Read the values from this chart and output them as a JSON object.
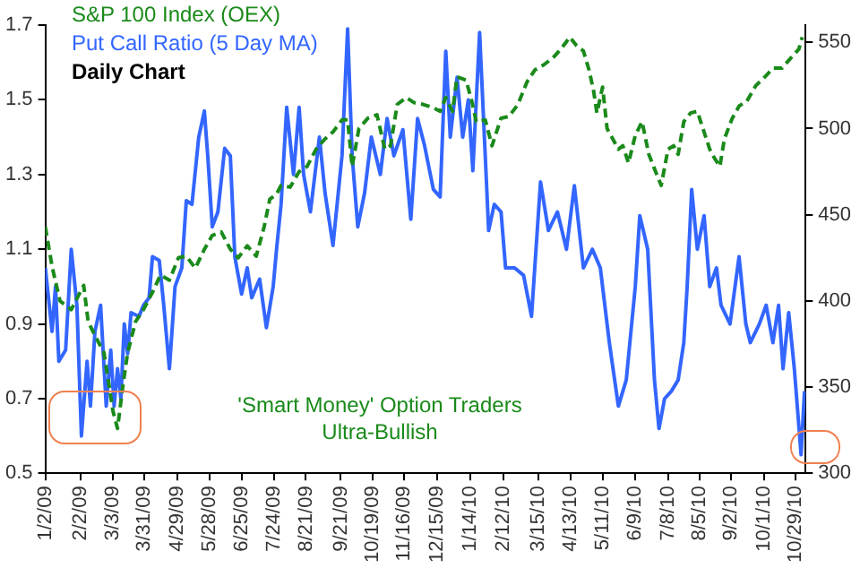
{
  "chart_data": {
    "type": "line",
    "subtitle": "Daily Chart",
    "annotations": [
      "'Smart Money' Option Traders\nUltra-Bullish"
    ],
    "legend": "top left",
    "grid": false,
    "marker": "none",
    "xlim": [
      "2009-01-02",
      "2010-11-07"
    ],
    "xticks": [
      {
        "value": "2009-01-02",
        "label": "1/2/09"
      },
      {
        "value": "2009-02-02",
        "label": "2/2/09"
      },
      {
        "value": "2009-03-03",
        "label": "3/3/09"
      },
      {
        "value": "2009-03-31",
        "label": "3/31/09"
      },
      {
        "value": "2009-04-29",
        "label": "4/29/09"
      },
      {
        "value": "2009-05-28",
        "label": "5/28/09"
      },
      {
        "value": "2009-06-25",
        "label": "6/25/09"
      },
      {
        "value": "2009-07-24",
        "label": "7/24/09"
      },
      {
        "value": "2009-08-21",
        "label": "8/21/09"
      },
      {
        "value": "2009-09-21",
        "label": "9/21/09"
      },
      {
        "value": "2009-10-19",
        "label": "10/19/09"
      },
      {
        "value": "2009-11-16",
        "label": "11/16/09"
      },
      {
        "value": "2009-12-15",
        "label": "12/15/09"
      },
      {
        "value": "2010-01-14",
        "label": "1/14/10"
      },
      {
        "value": "2010-02-12",
        "label": "2/12/10"
      },
      {
        "value": "2010-03-15",
        "label": "3/15/10"
      },
      {
        "value": "2010-04-13",
        "label": "4/13/10"
      },
      {
        "value": "2010-05-11",
        "label": "5/11/10"
      },
      {
        "value": "2010-06-09",
        "label": "6/9/10"
      },
      {
        "value": "2010-07-08",
        "label": "7/8/10"
      },
      {
        "value": "2010-08-05",
        "label": "8/5/10"
      },
      {
        "value": "2010-09-02",
        "label": "9/2/10"
      },
      {
        "value": "2010-10-01",
        "label": "10/1/10"
      },
      {
        "value": "2010-10-29",
        "label": "10/29/10"
      }
    ],
    "ylim": [
      0.5,
      1.7
    ],
    "yticks": [
      0.5,
      0.7,
      0.9,
      1.1,
      1.3,
      1.5,
      1.7
    ],
    "y2lim": [
      300,
      560
    ],
    "y2ticks": [
      300,
      350,
      400,
      450,
      500,
      550
    ],
    "series": [
      {
        "name": "S&P 100 Index (OEX)",
        "color": "#1a8a1a",
        "axis": "y2",
        "line_style": "dashed",
        "x": [
          "2009-01-02",
          "2009-01-08",
          "2009-01-15",
          "2009-01-25",
          "2009-02-05",
          "2009-02-09",
          "2009-02-15",
          "2009-02-23",
          "2009-02-28",
          "2009-03-03",
          "2009-03-07",
          "2009-03-12",
          "2009-03-16",
          "2009-03-23",
          "2009-03-30",
          "2009-04-07",
          "2009-04-14",
          "2009-04-22",
          "2009-04-30",
          "2009-05-07",
          "2009-05-15",
          "2009-05-23",
          "2009-05-30",
          "2009-06-07",
          "2009-06-15",
          "2009-06-22",
          "2009-06-30",
          "2009-07-08",
          "2009-07-15",
          "2009-07-20",
          "2009-07-26",
          "2009-07-30",
          "2009-08-07",
          "2009-08-15",
          "2009-08-22",
          "2009-08-30",
          "2009-09-07",
          "2009-09-14",
          "2009-09-22",
          "2009-09-27",
          "2009-10-01",
          "2009-10-07",
          "2009-10-15",
          "2009-10-23",
          "2009-10-30",
          "2009-11-04",
          "2009-11-10",
          "2009-11-18",
          "2009-11-25",
          "2009-12-03",
          "2009-12-12",
          "2009-12-18",
          "2009-12-23",
          "2009-12-29",
          "2010-01-02",
          "2010-01-10",
          "2010-01-15",
          "2010-01-19",
          "2010-01-27",
          "2010-02-02",
          "2010-02-10",
          "2010-02-17",
          "2010-02-25",
          "2010-03-05",
          "2010-03-12",
          "2010-03-20",
          "2010-03-28",
          "2010-04-04",
          "2010-04-12",
          "2010-04-18",
          "2010-04-24",
          "2010-04-29",
          "2010-05-03",
          "2010-05-06",
          "2010-05-11",
          "2010-05-15",
          "2010-05-20",
          "2010-05-25",
          "2010-05-29",
          "2010-06-03",
          "2010-06-09",
          "2010-06-15",
          "2010-06-21",
          "2010-06-27",
          "2010-07-02",
          "2010-07-08",
          "2010-07-13",
          "2010-07-17",
          "2010-07-22",
          "2010-07-28",
          "2010-08-03",
          "2010-08-09",
          "2010-08-14",
          "2010-08-18",
          "2010-08-23",
          "2010-08-27",
          "2010-09-03",
          "2010-09-09",
          "2010-09-16",
          "2010-09-24",
          "2010-10-02",
          "2010-10-09",
          "2010-10-17",
          "2010-10-25",
          "2010-11-01",
          "2010-11-04"
        ],
        "values": [
          443,
          420,
          400,
          395,
          409,
          388,
          380,
          370,
          349,
          336,
          326,
          352,
          370,
          388,
          395,
          405,
          415,
          412,
          425,
          426,
          419,
          430,
          438,
          440,
          430,
          425,
          432,
          426,
          443,
          459,
          462,
          467,
          466,
          475,
          478,
          488,
          494,
          498,
          505,
          505,
          478,
          500,
          506,
          508,
          488,
          490,
          514,
          518,
          515,
          514,
          512,
          510,
          518,
          510,
          530,
          528,
          516,
          504,
          505,
          490,
          506,
          507,
          514,
          527,
          534,
          537,
          541,
          546,
          553,
          548,
          545,
          534,
          522,
          509,
          524,
          500,
          494,
          488,
          490,
          480,
          496,
          504,
          485,
          475,
          467,
          488,
          490,
          485,
          504,
          509,
          510,
          498,
          488,
          483,
          478,
          494,
          506,
          513,
          516,
          525,
          530,
          535,
          535,
          541,
          546,
          553
        ]
      },
      {
        "name": "Put Call Ratio (5 Day MA)",
        "color": "#3366ff",
        "line_style": "solid",
        "x": [
          "2009-01-02",
          "2009-01-08",
          "2009-01-11",
          "2009-01-14",
          "2009-01-20",
          "2009-01-25",
          "2009-01-30",
          "2009-02-03",
          "2009-02-08",
          "2009-02-11",
          "2009-02-15",
          "2009-02-20",
          "2009-02-25",
          "2009-03-01",
          "2009-03-04",
          "2009-03-07",
          "2009-03-10",
          "2009-03-13",
          "2009-03-16",
          "2009-03-19",
          "2009-03-26",
          "2009-03-30",
          "2009-04-04",
          "2009-04-07",
          "2009-04-13",
          "2009-04-17",
          "2009-04-22",
          "2009-04-27",
          "2009-05-03",
          "2009-05-07",
          "2009-05-12",
          "2009-05-18",
          "2009-05-23",
          "2009-05-26",
          "2009-05-30",
          "2009-06-04",
          "2009-06-10",
          "2009-06-15",
          "2009-06-19",
          "2009-06-25",
          "2009-06-30",
          "2009-07-04",
          "2009-07-11",
          "2009-07-17",
          "2009-07-23",
          "2009-07-26",
          "2009-07-30",
          "2009-08-04",
          "2009-08-10",
          "2009-08-15",
          "2009-08-19",
          "2009-08-25",
          "2009-09-02",
          "2009-09-07",
          "2009-09-14",
          "2009-09-22",
          "2009-09-27",
          "2009-10-01",
          "2009-10-06",
          "2009-10-12",
          "2009-10-18",
          "2009-10-26",
          "2009-11-01",
          "2009-11-07",
          "2009-11-15",
          "2009-11-22",
          "2009-11-28",
          "2009-12-04",
          "2009-12-12",
          "2009-12-18",
          "2009-12-23",
          "2009-12-27",
          "2010-01-02",
          "2010-01-07",
          "2010-01-12",
          "2010-01-16",
          "2010-01-22",
          "2010-01-27",
          "2010-01-30",
          "2010-02-04",
          "2010-02-10",
          "2010-02-14",
          "2010-02-22",
          "2010-03-02",
          "2010-03-09",
          "2010-03-17",
          "2010-03-24",
          "2010-04-01",
          "2010-04-09",
          "2010-04-16",
          "2010-04-24",
          "2010-05-02",
          "2010-05-09",
          "2010-05-17",
          "2010-05-25",
          "2010-06-01",
          "2010-06-09",
          "2010-06-13",
          "2010-06-20",
          "2010-06-26",
          "2010-06-30",
          "2010-07-05",
          "2010-07-11",
          "2010-07-17",
          "2010-07-22",
          "2010-07-25",
          "2010-07-29",
          "2010-08-03",
          "2010-08-09",
          "2010-08-14",
          "2010-08-20",
          "2010-08-24",
          "2010-09-01",
          "2010-09-09",
          "2010-09-15",
          "2010-09-19",
          "2010-09-27",
          "2010-10-03",
          "2010-10-09",
          "2010-10-14",
          "2010-10-18",
          "2010-10-23",
          "2010-10-28",
          "2010-11-03",
          "2010-11-06"
        ],
        "values": [
          1.05,
          0.88,
          1.0,
          0.8,
          0.83,
          1.1,
          0.95,
          0.6,
          0.8,
          0.68,
          0.88,
          0.95,
          0.68,
          0.83,
          0.68,
          0.78,
          0.7,
          0.9,
          0.82,
          0.93,
          0.92,
          0.95,
          0.97,
          1.08,
          1.07,
          0.95,
          0.78,
          1.0,
          1.05,
          1.23,
          1.22,
          1.4,
          1.47,
          1.35,
          1.16,
          1.2,
          1.37,
          1.35,
          1.08,
          0.98,
          1.05,
          0.97,
          1.02,
          0.89,
          1.0,
          1.1,
          1.22,
          1.48,
          1.3,
          1.48,
          1.3,
          1.2,
          1.4,
          1.25,
          1.11,
          1.35,
          1.69,
          1.35,
          1.16,
          1.25,
          1.4,
          1.3,
          1.45,
          1.35,
          1.42,
          1.18,
          1.45,
          1.38,
          1.26,
          1.24,
          1.63,
          1.4,
          1.56,
          1.4,
          1.5,
          1.31,
          1.68,
          1.35,
          1.15,
          1.22,
          1.2,
          1.05,
          1.05,
          1.03,
          0.92,
          1.28,
          1.15,
          1.2,
          1.1,
          1.27,
          1.05,
          1.1,
          1.05,
          0.85,
          0.68,
          0.75,
          1.0,
          1.19,
          1.1,
          0.75,
          0.62,
          0.7,
          0.72,
          0.75,
          0.85,
          1.0,
          1.26,
          1.1,
          1.19,
          1.0,
          1.05,
          0.95,
          0.9,
          1.08,
          0.9,
          0.85,
          0.9,
          0.95,
          0.85,
          0.95,
          0.78,
          0.93,
          0.78,
          0.55,
          0.72
        ]
      }
    ]
  }
}
